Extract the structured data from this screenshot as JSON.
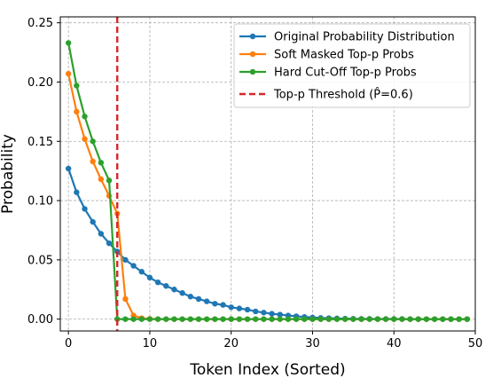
{
  "chart_data": {
    "type": "line",
    "title": "",
    "xlabel": "Token Index (Sorted)",
    "ylabel": "Probability",
    "xlim": [
      -1,
      50
    ],
    "ylim": [
      -0.01,
      0.255
    ],
    "x_ticks": [
      0,
      10,
      20,
      30,
      40,
      50
    ],
    "x_tick_labels": [
      "0",
      "10",
      "20",
      "30",
      "40",
      "50"
    ],
    "y_ticks": [
      0.0,
      0.05,
      0.1,
      0.15,
      0.2,
      0.25
    ],
    "y_tick_labels": [
      "0.00",
      "0.05",
      "0.10",
      "0.15",
      "0.20",
      "0.25"
    ],
    "grid": true,
    "legend_position": "top-right",
    "threshold": {
      "name": "Top-p Threshold (P̂=0.6)",
      "x": 6,
      "color": "#d62728",
      "style": "dashed"
    },
    "series": [
      {
        "name": "Original Probability Distribution",
        "color": "#1f77b4",
        "x": [
          0,
          1,
          2,
          3,
          4,
          5,
          6,
          7,
          8,
          9,
          10,
          11,
          12,
          13,
          14,
          15,
          16,
          17,
          18,
          19,
          20,
          21,
          22,
          23,
          24,
          25,
          26,
          27,
          28,
          29,
          30,
          31,
          32,
          33,
          34,
          35,
          36,
          37,
          38,
          39,
          40,
          41,
          42,
          43,
          44,
          45,
          46,
          47,
          48,
          49
        ],
        "values": [
          0.127,
          0.107,
          0.093,
          0.082,
          0.072,
          0.064,
          0.057,
          0.05,
          0.045,
          0.04,
          0.035,
          0.031,
          0.028,
          0.025,
          0.022,
          0.019,
          0.017,
          0.015,
          0.013,
          0.012,
          0.01,
          0.009,
          0.008,
          0.0065,
          0.0055,
          0.0045,
          0.0038,
          0.003,
          0.0024,
          0.0018,
          0.0014,
          0.001,
          0.0008,
          0.0006,
          0.0004,
          0.0003,
          0.0002,
          0.0002,
          0.0001,
          0.0001,
          0.0001,
          0.0001,
          0.0,
          0.0,
          0.0,
          0.0,
          0.0,
          0.0,
          0.0,
          0.0
        ]
      },
      {
        "name": "Soft Masked Top-p Probs",
        "color": "#ff7f0e",
        "x": [
          0,
          1,
          2,
          3,
          4,
          5,
          6,
          7,
          8,
          9,
          10,
          11,
          12,
          13,
          14,
          15,
          16,
          17,
          18,
          19,
          20,
          21,
          22,
          23,
          24,
          25,
          26,
          27,
          28,
          29,
          30,
          31,
          32,
          33,
          34,
          35,
          36,
          37,
          38,
          39,
          40,
          41,
          42,
          43,
          44,
          45,
          46,
          47,
          48,
          49
        ],
        "values": [
          0.207,
          0.175,
          0.152,
          0.133,
          0.118,
          0.104,
          0.089,
          0.017,
          0.003,
          0.0008,
          0.0002,
          0.0,
          0.0,
          0.0,
          0.0,
          0.0,
          0.0,
          0.0,
          0.0,
          0.0,
          0.0,
          0.0,
          0.0,
          0.0,
          0.0,
          0.0,
          0.0,
          0.0,
          0.0,
          0.0,
          0.0,
          0.0,
          0.0,
          0.0,
          0.0,
          0.0,
          0.0,
          0.0,
          0.0,
          0.0,
          0.0,
          0.0,
          0.0,
          0.0,
          0.0,
          0.0,
          0.0,
          0.0,
          0.0,
          0.0
        ]
      },
      {
        "name": "Hard Cut-Off Top-p Probs",
        "color": "#2ca02c",
        "x": [
          0,
          1,
          2,
          3,
          4,
          5,
          6,
          7,
          8,
          9,
          10,
          11,
          12,
          13,
          14,
          15,
          16,
          17,
          18,
          19,
          20,
          21,
          22,
          23,
          24,
          25,
          26,
          27,
          28,
          29,
          30,
          31,
          32,
          33,
          34,
          35,
          36,
          37,
          38,
          39,
          40,
          41,
          42,
          43,
          44,
          45,
          46,
          47,
          48,
          49
        ],
        "values": [
          0.233,
          0.197,
          0.171,
          0.15,
          0.132,
          0.117,
          0.0,
          0.0,
          0.0,
          0.0,
          0.0,
          0.0,
          0.0,
          0.0,
          0.0,
          0.0,
          0.0,
          0.0,
          0.0,
          0.0,
          0.0,
          0.0,
          0.0,
          0.0,
          0.0,
          0.0,
          0.0,
          0.0,
          0.0,
          0.0,
          0.0,
          0.0,
          0.0,
          0.0,
          0.0,
          0.0,
          0.0,
          0.0,
          0.0,
          0.0,
          0.0,
          0.0,
          0.0,
          0.0,
          0.0,
          0.0,
          0.0,
          0.0,
          0.0,
          0.0
        ]
      }
    ]
  }
}
